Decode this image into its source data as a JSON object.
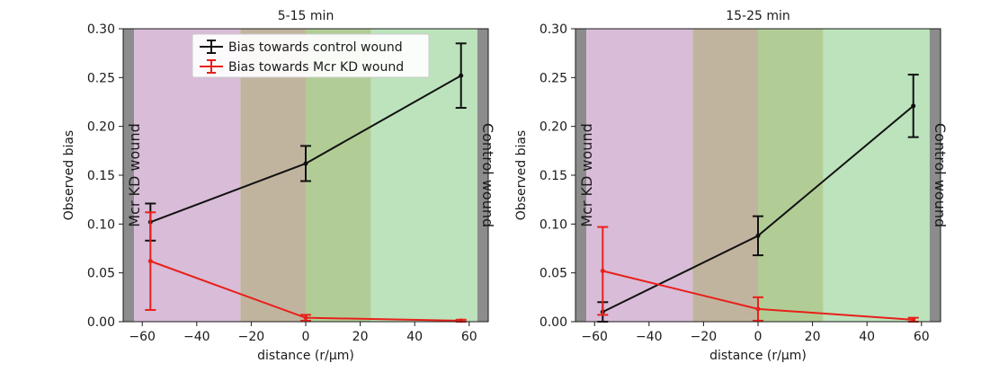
{
  "chart_data": [
    {
      "type": "line",
      "title": "5-15 min",
      "xlabel": "distance (r/μm)",
      "ylabel": "Observed bias",
      "xlim": [
        -67,
        67
      ],
      "ylim": [
        0,
        0.3
      ],
      "xticks": [
        -60,
        -40,
        -20,
        0,
        20,
        40,
        60
      ],
      "yticks": [
        0.0,
        0.05,
        0.1,
        0.15,
        0.2,
        0.25,
        0.3
      ],
      "xtick_labels": [
        "−60",
        "−40",
        "−20",
        "0",
        "20",
        "40",
        "60"
      ],
      "ytick_labels": [
        "0.00",
        "0.05",
        "0.10",
        "0.15",
        "0.20",
        "0.25",
        "0.30"
      ],
      "left_region_label": "Mcr KD wound",
      "right_region_label": "Control wound",
      "background_bands": [
        {
          "from": -67,
          "to": -63,
          "color": "#8c8c8c"
        },
        {
          "from": -63,
          "to": -24,
          "color": "#d8bcd8"
        },
        {
          "from": -24,
          "to": 0,
          "color": "#c1b49f"
        },
        {
          "from": 0,
          "to": 24,
          "color": "#b1cd95"
        },
        {
          "from": 24,
          "to": 63,
          "color": "#bce3bc"
        },
        {
          "from": 63,
          "to": 67,
          "color": "#8c8c8c"
        }
      ],
      "legend_position": "top-center",
      "series": [
        {
          "name": "Bias towards control wound",
          "color": "#111111",
          "x": [
            -57,
            0,
            57
          ],
          "y": [
            0.102,
            0.162,
            0.252
          ],
          "err": [
            0.019,
            0.018,
            0.033
          ]
        },
        {
          "name": "Bias towards Mcr KD wound",
          "color": "#e8201a",
          "x": [
            -57,
            0,
            57
          ],
          "y": [
            0.062,
            0.004,
            0.001
          ],
          "err": [
            0.05,
            0.003,
            0.001
          ]
        }
      ]
    },
    {
      "type": "line",
      "title": "15-25 min",
      "xlabel": "distance (r/μm)",
      "ylabel": "Observed bias",
      "xlim": [
        -67,
        67
      ],
      "ylim": [
        0,
        0.3
      ],
      "xticks": [
        -60,
        -40,
        -20,
        0,
        20,
        40,
        60
      ],
      "yticks": [
        0.0,
        0.05,
        0.1,
        0.15,
        0.2,
        0.25,
        0.3
      ],
      "xtick_labels": [
        "−60",
        "−40",
        "−20",
        "0",
        "20",
        "40",
        "60"
      ],
      "ytick_labels": [
        "0.00",
        "0.05",
        "0.10",
        "0.15",
        "0.20",
        "0.25",
        "0.30"
      ],
      "left_region_label": "Mcr KD wound",
      "right_region_label": "Control wound",
      "background_bands": [
        {
          "from": -67,
          "to": -63,
          "color": "#8c8c8c"
        },
        {
          "from": -63,
          "to": -24,
          "color": "#d8bcd8"
        },
        {
          "from": -24,
          "to": 0,
          "color": "#c1b49f"
        },
        {
          "from": 0,
          "to": 24,
          "color": "#b1cd95"
        },
        {
          "from": 24,
          "to": 63,
          "color": "#bce3bc"
        },
        {
          "from": 63,
          "to": 67,
          "color": "#8c8c8c"
        }
      ],
      "legend_position": "none",
      "series": [
        {
          "name": "Bias towards control wound",
          "color": "#111111",
          "x": [
            -57,
            0,
            57
          ],
          "y": [
            0.01,
            0.088,
            0.221
          ],
          "err": [
            0.01,
            0.02,
            0.032
          ]
        },
        {
          "name": "Bias towards Mcr KD wound",
          "color": "#e8201a",
          "x": [
            -57,
            0,
            57
          ],
          "y": [
            0.052,
            0.013,
            0.002
          ],
          "err": [
            0.045,
            0.012,
            0.002
          ]
        }
      ]
    }
  ]
}
